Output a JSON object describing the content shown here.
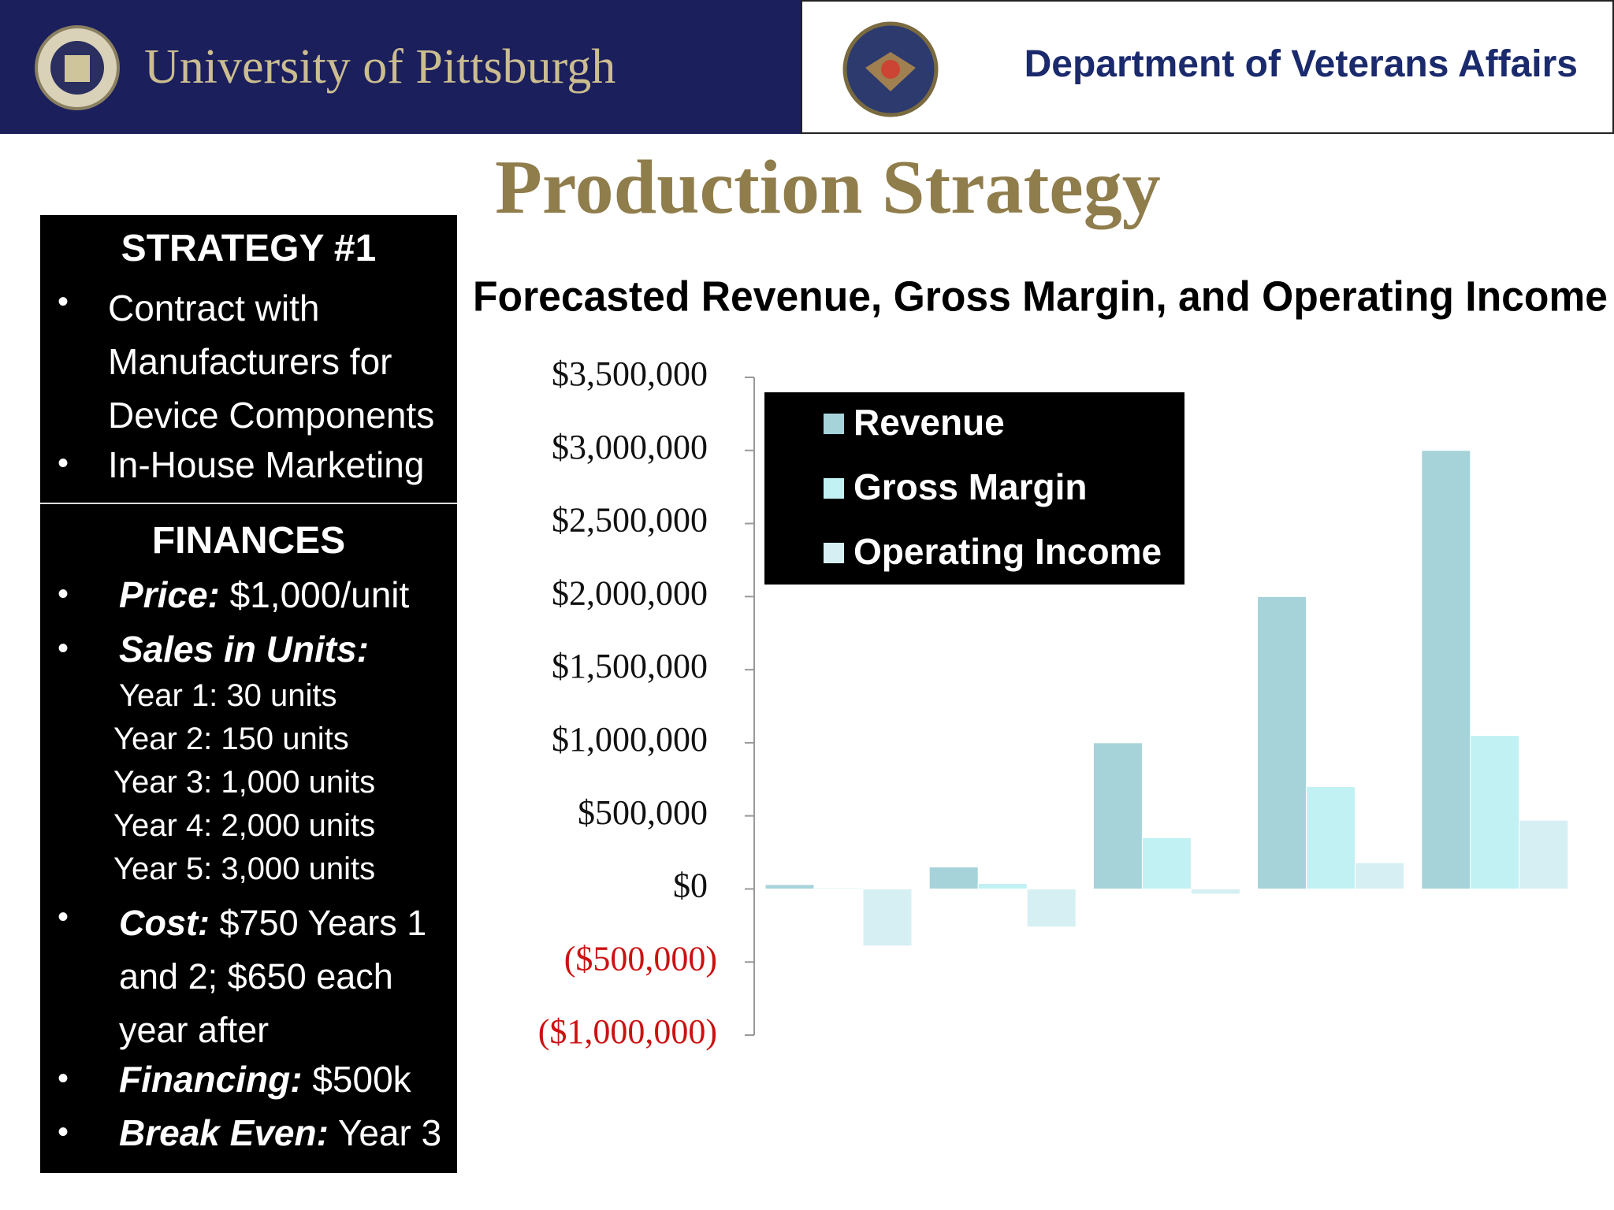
{
  "header": {
    "left_title": "University of Pittsburgh",
    "right_title": "Department of Veterans Affairs"
  },
  "slide_title": "Production Strategy",
  "strategy": {
    "title": "STRATEGY #1",
    "bullets": [
      "Contract with Manufacturers for Device Components",
      "In-House Marketing"
    ]
  },
  "finances": {
    "title": "FINANCES",
    "items": [
      {
        "label": "Price:",
        "text": "$1,000/unit"
      },
      {
        "label": "Sales in Units:",
        "lines": [
          "Year 1: 30 units",
          "Year 2: 150 units",
          "Year 3: 1,000 units",
          "Year 4: 2,000 units",
          "Year 5: 3,000 units"
        ]
      },
      {
        "label": "Cost:",
        "text": "$750 Years 1 and 2; $650 each year after"
      },
      {
        "label": "Financing:",
        "text": "$500k"
      },
      {
        "label": "Break Even:",
        "text": "Year 3"
      }
    ]
  },
  "chart_data": {
    "type": "bar",
    "title": "Forecasted Revenue,  Gross Margin, and Operating Income",
    "categories": [
      null,
      null,
      null,
      null,
      null
    ],
    "series": [
      {
        "name": "Revenue",
        "color": "#a6d3da",
        "values": [
          30000,
          150000,
          1000000,
          2000000,
          3000000
        ]
      },
      {
        "name": "Gross Margin",
        "color": "#c2f1f4",
        "values": [
          7500,
          37500,
          350000,
          700000,
          1050000
        ]
      },
      {
        "name": "Operating Income",
        "color": "#d6eff3",
        "values": [
          -390000,
          -260000,
          -35000,
          180000,
          470000
        ]
      }
    ],
    "ylim": [
      -1000000,
      3500000
    ],
    "yticks": [
      {
        "value": -1000000,
        "label": "($1,000,000)"
      },
      {
        "value": -500000,
        "label": "($500,000)"
      },
      {
        "value": 0,
        "label": "$0"
      },
      {
        "value": 500000,
        "label": "$500,000"
      },
      {
        "value": 1000000,
        "label": "$1,000,000"
      },
      {
        "value": 1500000,
        "label": "$1,500,000"
      },
      {
        "value": 2000000,
        "label": "$2,000,000"
      },
      {
        "value": 2500000,
        "label": "$2,500,000"
      },
      {
        "value": 3000000,
        "label": "$3,000,000"
      },
      {
        "value": 3500000,
        "label": "$3,500,000"
      }
    ],
    "negative_tick_color": "#cc1111",
    "legend": "upper left"
  }
}
